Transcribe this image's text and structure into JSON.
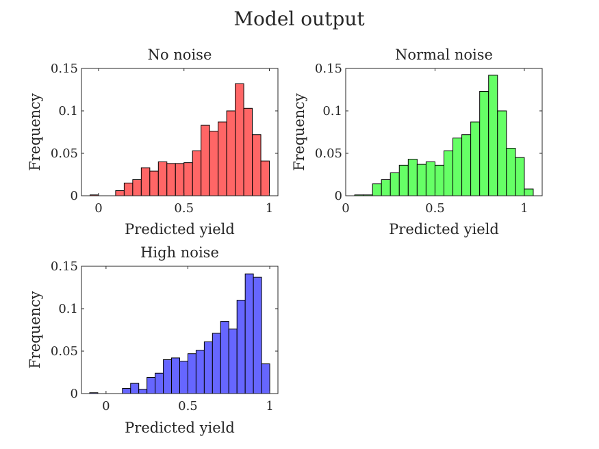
{
  "figure": {
    "suptitle": "Model output"
  },
  "chart_data": [
    {
      "type": "bar",
      "id": "no-noise",
      "title": "No noise",
      "xlabel": "Predicted yield",
      "ylabel": "Frequency",
      "xlim": [
        -0.1,
        1.05
      ],
      "ylim": [
        0,
        0.15
      ],
      "xticks": [
        0,
        0.5,
        1
      ],
      "xtick_labels": [
        "0",
        "0.5",
        "1"
      ],
      "yticks": [
        0,
        0.05,
        0.1,
        0.15
      ],
      "ytick_labels": [
        "0",
        "0.05",
        "0.1",
        "0.15"
      ],
      "color": "#ff6666",
      "bin_width": 0.05,
      "bins": [
        {
          "x0": -0.05,
          "value": 0.001
        },
        {
          "x0": 0.0,
          "value": 0.0
        },
        {
          "x0": 0.05,
          "value": 0.0
        },
        {
          "x0": 0.1,
          "value": 0.006
        },
        {
          "x0": 0.15,
          "value": 0.015
        },
        {
          "x0": 0.2,
          "value": 0.019
        },
        {
          "x0": 0.25,
          "value": 0.033
        },
        {
          "x0": 0.3,
          "value": 0.029
        },
        {
          "x0": 0.35,
          "value": 0.04
        },
        {
          "x0": 0.4,
          "value": 0.038
        },
        {
          "x0": 0.45,
          "value": 0.038
        },
        {
          "x0": 0.5,
          "value": 0.039
        },
        {
          "x0": 0.55,
          "value": 0.053
        },
        {
          "x0": 0.6,
          "value": 0.083
        },
        {
          "x0": 0.65,
          "value": 0.076
        },
        {
          "x0": 0.7,
          "value": 0.087
        },
        {
          "x0": 0.75,
          "value": 0.1
        },
        {
          "x0": 0.8,
          "value": 0.132
        },
        {
          "x0": 0.85,
          "value": 0.103
        },
        {
          "x0": 0.9,
          "value": 0.072
        },
        {
          "x0": 0.95,
          "value": 0.041
        }
      ]
    },
    {
      "type": "bar",
      "id": "normal-noise",
      "title": "Normal noise",
      "xlabel": "Predicted yield",
      "ylabel": "Frequency",
      "xlim": [
        0,
        1.1
      ],
      "ylim": [
        0,
        0.15
      ],
      "xticks": [
        0,
        0.5,
        1
      ],
      "xtick_labels": [
        "0",
        "0.5",
        "1"
      ],
      "yticks": [
        0,
        0.05,
        0.1,
        0.15
      ],
      "ytick_labels": [
        "0",
        "0.05",
        "0.1",
        "0.15"
      ],
      "color": "#66ff66",
      "bin_width": 0.05,
      "bins": [
        {
          "x0": 0.05,
          "value": 0.001
        },
        {
          "x0": 0.1,
          "value": 0.001
        },
        {
          "x0": 0.15,
          "value": 0.014
        },
        {
          "x0": 0.2,
          "value": 0.019
        },
        {
          "x0": 0.25,
          "value": 0.027
        },
        {
          "x0": 0.3,
          "value": 0.036
        },
        {
          "x0": 0.35,
          "value": 0.043
        },
        {
          "x0": 0.4,
          "value": 0.037
        },
        {
          "x0": 0.45,
          "value": 0.04
        },
        {
          "x0": 0.5,
          "value": 0.036
        },
        {
          "x0": 0.55,
          "value": 0.053
        },
        {
          "x0": 0.6,
          "value": 0.068
        },
        {
          "x0": 0.65,
          "value": 0.072
        },
        {
          "x0": 0.7,
          "value": 0.087
        },
        {
          "x0": 0.75,
          "value": 0.123
        },
        {
          "x0": 0.8,
          "value": 0.142
        },
        {
          "x0": 0.85,
          "value": 0.1
        },
        {
          "x0": 0.9,
          "value": 0.056
        },
        {
          "x0": 0.95,
          "value": 0.045
        },
        {
          "x0": 1.0,
          "value": 0.008
        }
      ]
    },
    {
      "type": "bar",
      "id": "high-noise",
      "title": "High noise",
      "xlabel": "Predicted yield",
      "ylabel": "Frequency",
      "xlim": [
        -0.15,
        1.05
      ],
      "ylim": [
        0,
        0.15
      ],
      "xticks": [
        0,
        0.5,
        1
      ],
      "xtick_labels": [
        "0",
        "0.5",
        "1"
      ],
      "yticks": [
        0,
        0.05,
        0.1,
        0.15
      ],
      "ytick_labels": [
        "0",
        "0.05",
        "0.1",
        "0.15"
      ],
      "color": "#6666ff",
      "bin_width": 0.05,
      "bins": [
        {
          "x0": -0.1,
          "value": 0.001
        },
        {
          "x0": -0.05,
          "value": 0.0
        },
        {
          "x0": 0.0,
          "value": 0.0
        },
        {
          "x0": 0.05,
          "value": 0.0
        },
        {
          "x0": 0.1,
          "value": 0.006
        },
        {
          "x0": 0.15,
          "value": 0.012
        },
        {
          "x0": 0.2,
          "value": 0.005
        },
        {
          "x0": 0.25,
          "value": 0.019
        },
        {
          "x0": 0.3,
          "value": 0.024
        },
        {
          "x0": 0.35,
          "value": 0.04
        },
        {
          "x0": 0.4,
          "value": 0.042
        },
        {
          "x0": 0.45,
          "value": 0.038
        },
        {
          "x0": 0.5,
          "value": 0.047
        },
        {
          "x0": 0.55,
          "value": 0.051
        },
        {
          "x0": 0.6,
          "value": 0.061
        },
        {
          "x0": 0.65,
          "value": 0.071
        },
        {
          "x0": 0.7,
          "value": 0.085
        },
        {
          "x0": 0.75,
          "value": 0.076
        },
        {
          "x0": 0.8,
          "value": 0.11
        },
        {
          "x0": 0.85,
          "value": 0.141
        },
        {
          "x0": 0.9,
          "value": 0.137
        },
        {
          "x0": 0.95,
          "value": 0.035
        }
      ]
    }
  ]
}
